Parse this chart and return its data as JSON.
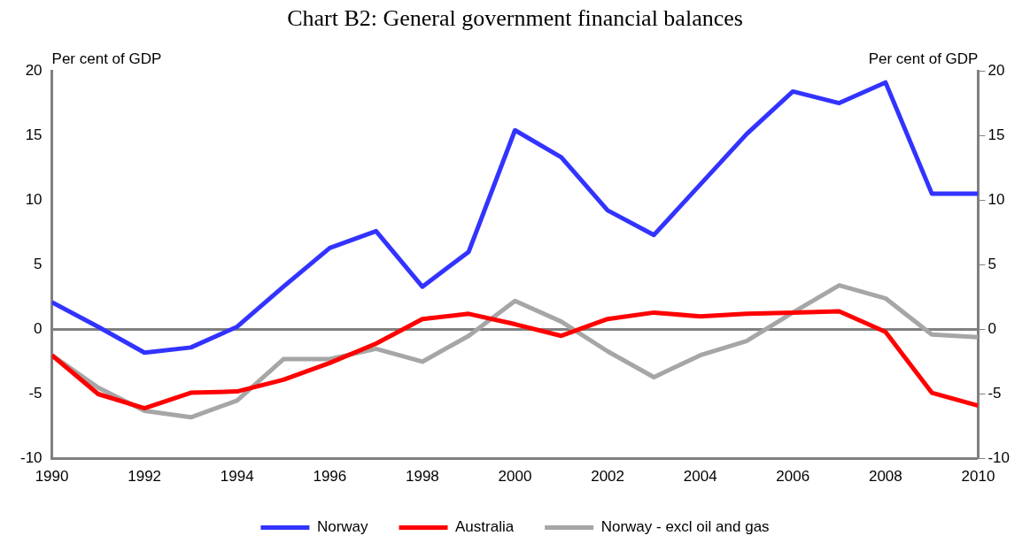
{
  "chart_data": {
    "type": "line",
    "title": "Chart B2: General government financial balances",
    "ylabel": "Per cent of GDP",
    "y2label": "Per cent of GDP",
    "x": [
      1990,
      1991,
      1992,
      1993,
      1994,
      1995,
      1996,
      1997,
      1998,
      1999,
      2000,
      2001,
      2002,
      2003,
      2004,
      2005,
      2006,
      2007,
      2008,
      2009,
      2010
    ],
    "xlim": [
      1990,
      2010
    ],
    "xticks": [
      1990,
      1992,
      1994,
      1996,
      1998,
      2000,
      2002,
      2004,
      2006,
      2008,
      2010
    ],
    "ylim": [
      -10,
      20
    ],
    "yticks": [
      -10,
      -5,
      0,
      5,
      10,
      15,
      20
    ],
    "y2lim": [
      -10,
      20
    ],
    "y2ticks": [
      -10,
      -5,
      0,
      5,
      10,
      15,
      20
    ],
    "series": [
      {
        "name": "Norway",
        "color": "#3333ff",
        "values": [
          2.1,
          0.2,
          -1.8,
          -1.4,
          0.2,
          3.3,
          6.3,
          7.6,
          3.3,
          6.0,
          15.4,
          13.3,
          9.2,
          7.3,
          11.2,
          15.1,
          18.4,
          17.5,
          19.1,
          10.5,
          10.5
        ]
      },
      {
        "name": "Australia",
        "color": "#ff0000",
        "values": [
          -2.0,
          -5.0,
          -6.1,
          -4.9,
          -4.8,
          -3.9,
          -2.6,
          -1.1,
          0.8,
          1.2,
          0.4,
          -0.5,
          0.8,
          1.3,
          1.0,
          1.2,
          1.3,
          1.4,
          -0.2,
          -4.9,
          -5.9
        ]
      },
      {
        "name": "Norway - excl oil and gas",
        "color": "#a6a6a6",
        "values": [
          -2.0,
          -4.5,
          -6.3,
          -6.8,
          -5.5,
          -2.3,
          -2.3,
          -1.5,
          -2.5,
          -0.5,
          2.2,
          0.6,
          -1.7,
          -3.7,
          -2.0,
          -0.9,
          1.3,
          3.4,
          2.4,
          -0.4,
          -0.6
        ]
      }
    ],
    "ref_lines": [
      {
        "axis": "y",
        "value": 0,
        "color": "#808080"
      }
    ],
    "grid": false,
    "legend": "bottom",
    "marker": "none",
    "line_style": "solid"
  }
}
